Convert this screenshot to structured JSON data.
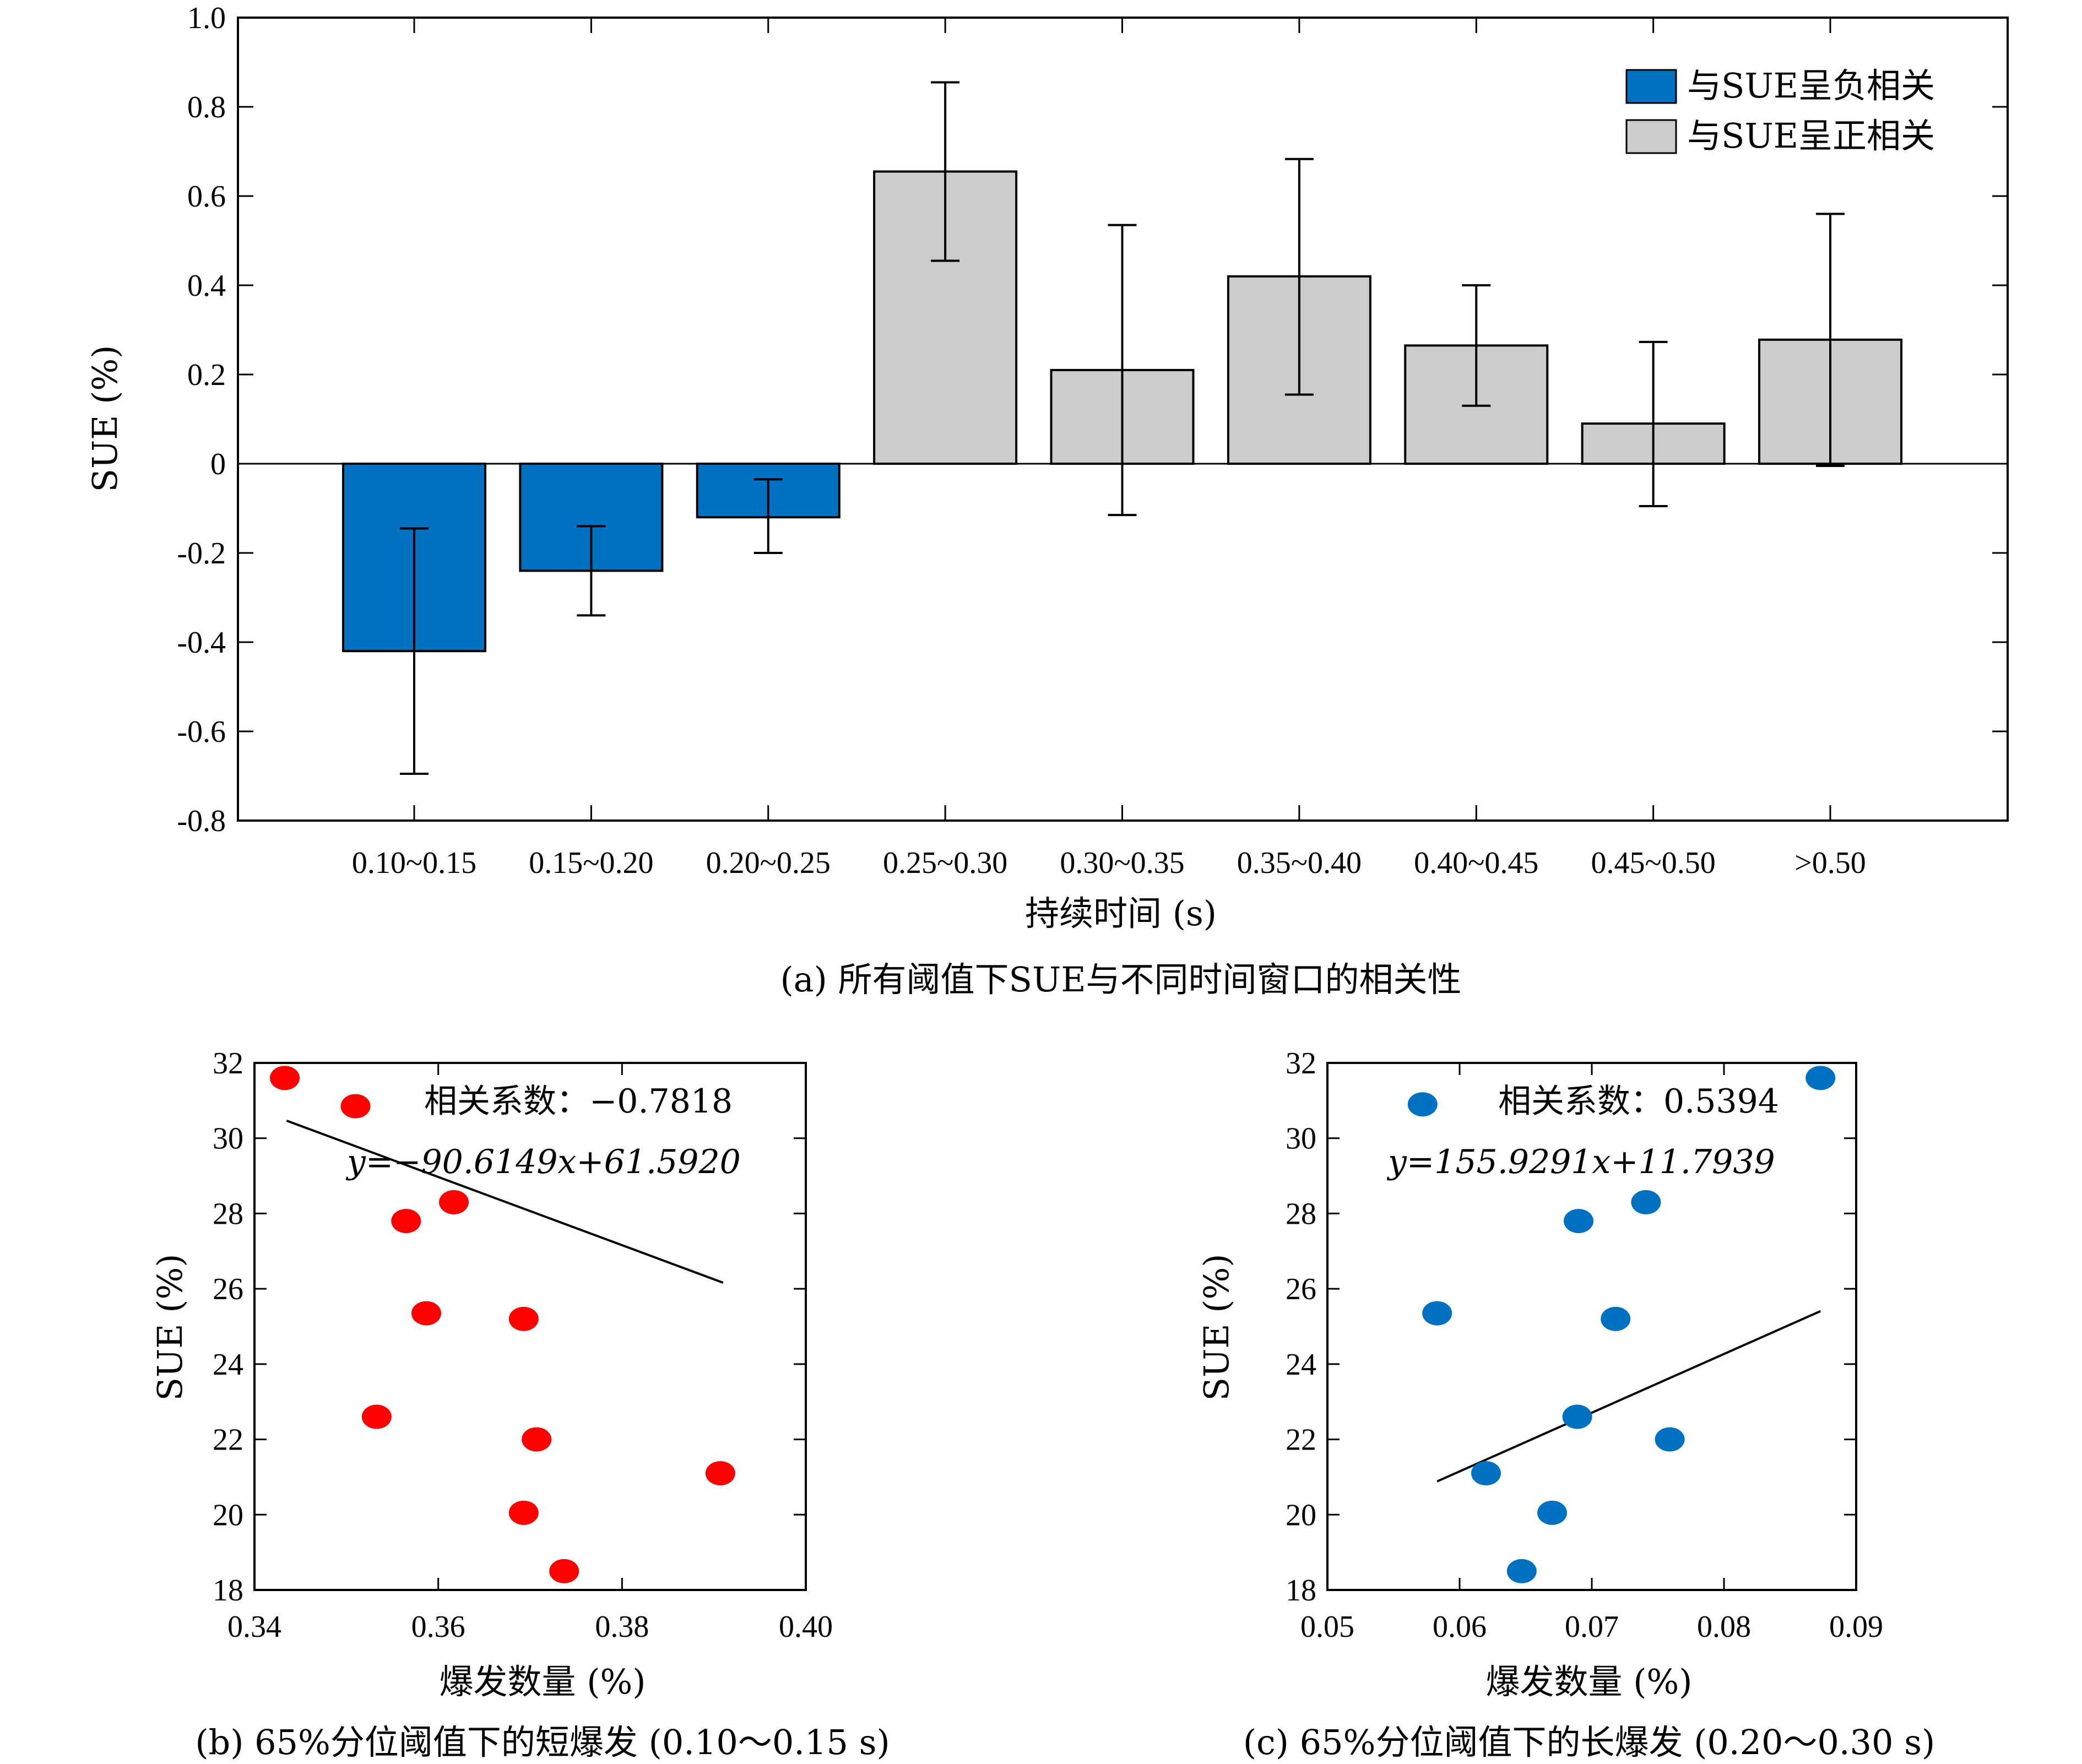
{
  "chart_data": [
    {
      "type": "bar",
      "ylabel": "SUE (%)",
      "xlabel": "持续时间 (s)",
      "caption": "(a) 所有阈值下SUE与不同时间窗口的相关性",
      "categories": [
        "0.10~0.15",
        "0.15~0.20",
        "0.20~0.25",
        "0.25~0.30",
        "0.30~0.35",
        "0.35~0.40",
        "0.40~0.45",
        "0.45~0.50",
        ">0.50"
      ],
      "values": [
        -0.42,
        -0.24,
        -0.12,
        0.655,
        0.21,
        0.42,
        0.265,
        0.09,
        0.278
      ],
      "err_low": [
        -0.695,
        -0.34,
        -0.2,
        0.455,
        -0.115,
        0.155,
        0.13,
        -0.095,
        -0.005
      ],
      "err_high": [
        -0.145,
        -0.14,
        -0.035,
        0.855,
        0.535,
        0.683,
        0.4,
        0.273,
        0.56
      ],
      "bar_group": [
        "neg",
        "neg",
        "neg",
        "pos",
        "pos",
        "pos",
        "pos",
        "pos",
        "pos"
      ],
      "ylim": [
        -0.8,
        1.0
      ],
      "yticks": [
        "1.0",
        "0.8",
        "0.6",
        "0.4",
        "0.2",
        "0",
        "-0.2",
        "-0.4",
        "-0.6",
        "-0.8"
      ],
      "ytick_values": [
        1.0,
        0.8,
        0.6,
        0.4,
        0.2,
        0,
        -0.2,
        -0.4,
        -0.6,
        -0.8
      ],
      "legend": {
        "placement": "top-right",
        "entries": [
          {
            "label": "与SUE呈负相关",
            "color": "#0070c0"
          },
          {
            "label": "与SUE呈正相关",
            "color": "#cccccc"
          }
        ]
      }
    },
    {
      "type": "scatter",
      "xlabel": "爆发数量 (%)",
      "ylabel": "SUE (%)",
      "caption": "(b) 65%分位阈值下的短爆发 (0.10～0.15 s)",
      "annotation_corr": "相关系数：−0.7818",
      "annotation_eq": "y=−90.6149x+61.5920",
      "color": "#ff0000",
      "xlim": [
        0.34,
        0.4
      ],
      "ylim": [
        18,
        32
      ],
      "xticks": [
        "0.34",
        "0.36",
        "0.38",
        "0.40"
      ],
      "xtick_values": [
        0.34,
        0.36,
        0.38,
        0.4
      ],
      "yticks": [
        "32",
        "30",
        "28",
        "26",
        "24",
        "22",
        "20",
        "18"
      ],
      "ytick_values": [
        32,
        30,
        28,
        26,
        24,
        22,
        20,
        18
      ],
      "points": [
        [
          0.3433,
          31.6
        ],
        [
          0.351,
          30.85
        ],
        [
          0.3565,
          27.8
        ],
        [
          0.3617,
          28.3
        ],
        [
          0.3587,
          25.35
        ],
        [
          0.3693,
          25.2
        ],
        [
          0.3533,
          22.6
        ],
        [
          0.3707,
          22.0
        ],
        [
          0.3907,
          21.1
        ],
        [
          0.3693,
          20.05
        ],
        [
          0.3737,
          18.5
        ]
      ],
      "fit": {
        "slope": -90.6149,
        "intercept": 61.592,
        "x_range": [
          0.3435,
          0.391
        ]
      }
    },
    {
      "type": "scatter",
      "xlabel": "爆发数量 (%)",
      "ylabel": "SUE (%)",
      "caption": "(c) 65%分位阈值下的长爆发 (0.20～0.30 s)",
      "annotation_corr": "相关系数：0.5394",
      "annotation_eq": "y=155.9291x+11.7939",
      "color": "#0070c0",
      "xlim": [
        0.05,
        0.09
      ],
      "ylim": [
        18,
        32
      ],
      "xticks": [
        "0.05",
        "0.06",
        "0.07",
        "0.08",
        "0.09"
      ],
      "xtick_values": [
        0.05,
        0.06,
        0.07,
        0.08,
        0.09
      ],
      "yticks": [
        "32",
        "30",
        "28",
        "26",
        "24",
        "22",
        "20",
        "18"
      ],
      "ytick_values": [
        32,
        30,
        28,
        26,
        24,
        22,
        20,
        18
      ],
      "points": [
        [
          0.0572,
          30.9
        ],
        [
          0.0873,
          31.6
        ],
        [
          0.0583,
          25.35
        ],
        [
          0.069,
          27.8
        ],
        [
          0.0741,
          28.3
        ],
        [
          0.0718,
          25.2
        ],
        [
          0.0689,
          22.6
        ],
        [
          0.0759,
          22.0
        ],
        [
          0.062,
          21.1
        ],
        [
          0.067,
          20.05
        ],
        [
          0.0647,
          18.5
        ]
      ],
      "fit": {
        "slope": 155.9291,
        "intercept": 11.7939,
        "x_range": [
          0.0583,
          0.0873
        ]
      }
    }
  ]
}
